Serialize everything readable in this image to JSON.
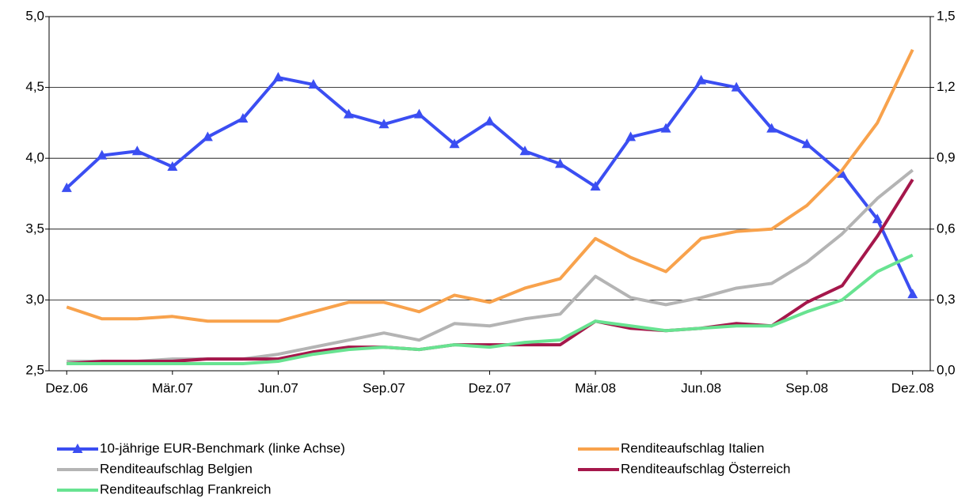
{
  "chart_data": {
    "type": "line",
    "categories": [
      "Dez.06",
      null,
      null,
      "Mär.07",
      null,
      null,
      "Jun.07",
      null,
      null,
      "Sep.07",
      null,
      null,
      "Dez.07",
      null,
      null,
      "Mär.08",
      null,
      null,
      "Jun.08",
      null,
      null,
      "Sep.08",
      null,
      null,
      "Dez.08"
    ],
    "series": [
      {
        "name": "10-jährige EUR-Benchmark (linke Achse)",
        "color": "#3b4ef2",
        "marker": "triangle",
        "values": [
          3.79,
          4.02,
          4.05,
          3.94,
          4.15,
          4.28,
          4.57,
          4.52,
          4.31,
          4.24,
          4.31,
          4.1,
          4.26,
          4.05,
          3.96,
          3.8,
          4.15,
          4.21,
          4.55,
          4.5,
          4.21,
          4.1,
          3.89,
          3.57,
          3.04
        ]
      },
      {
        "name": "Renditeaufschlag Italien",
        "color": "#f8a24c",
        "axis": "y2",
        "values": [
          0.27,
          0.22,
          0.22,
          0.23,
          0.21,
          0.21,
          0.21,
          0.25,
          0.29,
          0.29,
          0.25,
          0.32,
          0.29,
          0.35,
          0.39,
          0.56,
          0.48,
          0.42,
          0.56,
          0.59,
          0.6,
          0.7,
          0.85,
          1.05,
          1.36
        ]
      },
      {
        "name": "Renditeaufschlag Belgien",
        "color": "#b4b4b4",
        "axis": "y2",
        "values": [
          0.04,
          0.04,
          0.04,
          0.05,
          0.05,
          0.05,
          0.07,
          0.1,
          0.13,
          0.16,
          0.13,
          0.2,
          0.19,
          0.22,
          0.24,
          0.4,
          0.31,
          0.28,
          0.31,
          0.35,
          0.37,
          0.46,
          0.58,
          0.73,
          0.85
        ]
      },
      {
        "name": "Renditeaufschlag Österreich",
        "color": "#a5174b",
        "axis": "y2",
        "values": [
          0.03,
          0.04,
          0.04,
          0.04,
          0.05,
          0.05,
          0.05,
          0.08,
          0.1,
          0.1,
          0.09,
          0.11,
          0.11,
          0.11,
          0.11,
          0.21,
          0.18,
          0.17,
          0.18,
          0.2,
          0.19,
          0.29,
          0.36,
          0.57,
          0.81
        ]
      },
      {
        "name": "Renditeaufschlag Frankreich",
        "color": "#68e391",
        "axis": "y2",
        "values": [
          0.03,
          0.03,
          0.03,
          0.03,
          0.03,
          0.03,
          0.04,
          0.07,
          0.09,
          0.1,
          0.09,
          0.11,
          0.1,
          0.12,
          0.13,
          0.21,
          0.19,
          0.17,
          0.18,
          0.19,
          0.19,
          0.25,
          0.3,
          0.42,
          0.49
        ]
      }
    ],
    "ylim": [
      2.5,
      5.0
    ],
    "yticks": [
      {
        "value": 2.5,
        "label": "2,5"
      },
      {
        "value": 3.0,
        "label": "3,0"
      },
      {
        "value": 3.5,
        "label": "3,5"
      },
      {
        "value": 4.0,
        "label": "4,0"
      },
      {
        "value": 4.5,
        "label": "4,5"
      },
      {
        "value": 5.0,
        "label": "5,0"
      }
    ],
    "y2lim": [
      0.0,
      1.5
    ],
    "y2ticks": [
      {
        "value": 0.0,
        "label": "0,0"
      },
      {
        "value": 0.3,
        "label": "0,3"
      },
      {
        "value": 0.6,
        "label": "0,6"
      },
      {
        "value": 0.9,
        "label": "0,9"
      },
      {
        "value": 1.2,
        "label": "1,2"
      },
      {
        "value": 1.5,
        "label": "1,5"
      }
    ],
    "grid": true
  }
}
